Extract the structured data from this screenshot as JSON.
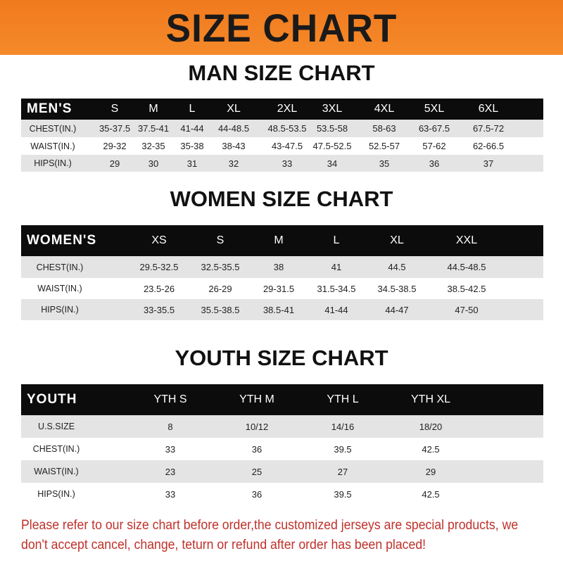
{
  "banner": "SIZE CHART",
  "men": {
    "title": "MAN SIZE CHART",
    "header": [
      "MEN'S",
      "S",
      "M",
      "L",
      "XL",
      "2XL",
      "3XL",
      "4XL",
      "5XL",
      "6XL"
    ],
    "rows": [
      [
        "CHEST(IN.)",
        "35-37.5",
        "37.5-41",
        "41-44",
        "44-48.5",
        "48.5-53.5",
        "53.5-58",
        "58-63",
        "63-67.5",
        "67.5-72"
      ],
      [
        "WAIST(IN.)",
        "29-32",
        "32-35",
        "35-38",
        "38-43",
        "43-47.5",
        "47.5-52.5",
        "52.5-57",
        "57-62",
        "62-66.5"
      ],
      [
        "HIPS(IN.)",
        "29",
        "30",
        "31",
        "32",
        "33",
        "34",
        "35",
        "36",
        "37"
      ]
    ]
  },
  "women": {
    "title": "WOMEN SIZE CHART",
    "header": [
      "WOMEN'S",
      "XS",
      "S",
      "M",
      "L",
      "XL",
      "XXL"
    ],
    "rows": [
      [
        "CHEST(IN.)",
        "29.5-32.5",
        "32.5-35.5",
        "38",
        "41",
        "44.5",
        "44.5-48.5"
      ],
      [
        "WAIST(IN.)",
        "23.5-26",
        "26-29",
        "29-31.5",
        "31.5-34.5",
        "34.5-38.5",
        "38.5-42.5"
      ],
      [
        "HIPS(IN.)",
        "33-35.5",
        "35.5-38.5",
        "38.5-41",
        "41-44",
        "44-47",
        "47-50"
      ]
    ]
  },
  "youth": {
    "title": "YOUTH SIZE CHART",
    "header": [
      "YOUTH",
      "YTH S",
      "YTH M",
      "YTH L",
      "YTH XL"
    ],
    "rows": [
      [
        "U.S.SIZE",
        "8",
        "10/12",
        "14/16",
        "18/20"
      ],
      [
        "CHEST(IN.)",
        "33",
        "36",
        "39.5",
        "42.5"
      ],
      [
        "WAIST(IN.)",
        "23",
        "25",
        "27",
        "29"
      ],
      [
        "HIPS(IN.)",
        "33",
        "36",
        "39.5",
        "42.5"
      ]
    ]
  },
  "note": "Please refer to our size chart before order,the customized jerseys are special products, we don't accept cancel, change, teturn or refund after order has been placed!",
  "colors": {
    "banner": "#f07a1e",
    "header_row": "#0c0c0c",
    "stripe": "#e4e4e4",
    "note": "#c0312b"
  }
}
